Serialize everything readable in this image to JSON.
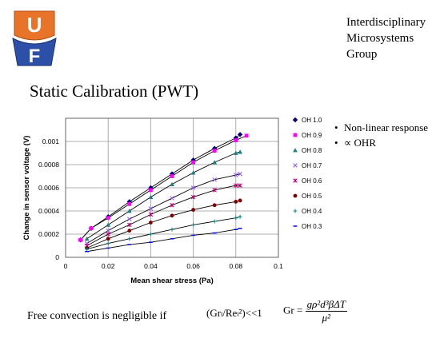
{
  "header": {
    "logo_alt": "UF",
    "group_lines": [
      "Interdisciplinary",
      "Microsystems",
      "Group"
    ],
    "title": "Static Calibration (PWT)"
  },
  "bullets": [
    "Non-linear response",
    "∝ OHR"
  ],
  "footer": {
    "text": "Free convection is negligible if",
    "condition": "(Grₗ/Reₗ²)<<1",
    "gr_lhs": "Gr =",
    "gr_num": "gρ²d³βΔT",
    "gr_den": "μ²"
  },
  "colors": {
    "OH 1.0": "#00007a",
    "OH 0.9": "#ff00ff",
    "OH 0.8": "#1f7f7f",
    "OH 0.7": "#8a4fff",
    "OH 0.6": "#c0007a",
    "OH 0.5": "#800000",
    "OH 0.4": "#008080",
    "OH 0.3": "#0000ff"
  },
  "chart_data": {
    "type": "scatter",
    "title": "",
    "xlabel": "Mean shear stress (Pa)",
    "ylabel": "Change in sensor voltage (V)",
    "xlim": [
      0,
      0.1
    ],
    "ylim": [
      0,
      0.0012
    ],
    "xticks": [
      "0",
      "0.02",
      "0.04",
      "0.06",
      "0.08",
      "0.1"
    ],
    "yticks": [
      "0",
      "0.0002",
      "0.0004",
      "0.0006",
      "0.0008",
      "0.001"
    ],
    "grid": true,
    "legend_position": "right",
    "series": [
      {
        "name": "OH 1.0",
        "marker": "diamond",
        "x": [
          0.007,
          0.012,
          0.02,
          0.03,
          0.04,
          0.05,
          0.06,
          0.07,
          0.08,
          0.082
        ],
        "y": [
          0.00015,
          0.00025,
          0.00035,
          0.00048,
          0.0006,
          0.00072,
          0.00084,
          0.00094,
          0.00103,
          0.00106
        ]
      },
      {
        "name": "OH 0.9",
        "marker": "square",
        "x": [
          0.007,
          0.012,
          0.02,
          0.03,
          0.04,
          0.05,
          0.06,
          0.07,
          0.08,
          0.085
        ],
        "y": [
          0.00015,
          0.00025,
          0.00034,
          0.00046,
          0.00058,
          0.0007,
          0.00082,
          0.00092,
          0.00101,
          0.00105
        ]
      },
      {
        "name": "OH 0.8",
        "marker": "triangle",
        "x": [
          0.01,
          0.02,
          0.03,
          0.04,
          0.05,
          0.06,
          0.07,
          0.08,
          0.082
        ],
        "y": [
          0.00016,
          0.00028,
          0.0004,
          0.00052,
          0.00063,
          0.00073,
          0.00082,
          0.0009,
          0.00091
        ]
      },
      {
        "name": "OH 0.7",
        "marker": "x",
        "x": [
          0.01,
          0.02,
          0.03,
          0.04,
          0.05,
          0.06,
          0.07,
          0.08,
          0.082
        ],
        "y": [
          0.00012,
          0.00023,
          0.00033,
          0.00042,
          0.00051,
          0.0006,
          0.00067,
          0.00071,
          0.00072
        ]
      },
      {
        "name": "OH 0.6",
        "marker": "asterisk",
        "x": [
          0.01,
          0.02,
          0.03,
          0.04,
          0.05,
          0.06,
          0.07,
          0.08,
          0.082
        ],
        "y": [
          0.0001,
          0.0002,
          0.00028,
          0.00037,
          0.00045,
          0.00052,
          0.00058,
          0.00062,
          0.00062
        ]
      },
      {
        "name": "OH 0.5",
        "marker": "circle",
        "x": [
          0.01,
          0.02,
          0.03,
          0.04,
          0.05,
          0.06,
          0.07,
          0.08,
          0.082
        ],
        "y": [
          8e-05,
          0.00016,
          0.00023,
          0.0003,
          0.00036,
          0.00041,
          0.00045,
          0.00048,
          0.00049
        ]
      },
      {
        "name": "OH 0.4",
        "marker": "plus",
        "x": [
          0.01,
          0.02,
          0.03,
          0.04,
          0.05,
          0.06,
          0.07,
          0.08,
          0.082
        ],
        "y": [
          7e-05,
          0.00012,
          0.00016,
          0.0002,
          0.00024,
          0.00028,
          0.00031,
          0.00034,
          0.00035
        ]
      },
      {
        "name": "OH 0.3",
        "marker": "dash",
        "x": [
          0.01,
          0.02,
          0.03,
          0.04,
          0.05,
          0.06,
          0.07,
          0.08,
          0.082
        ],
        "y": [
          5e-05,
          8e-05,
          0.00011,
          0.00013,
          0.00016,
          0.00019,
          0.00021,
          0.00024,
          0.00025
        ]
      }
    ]
  }
}
